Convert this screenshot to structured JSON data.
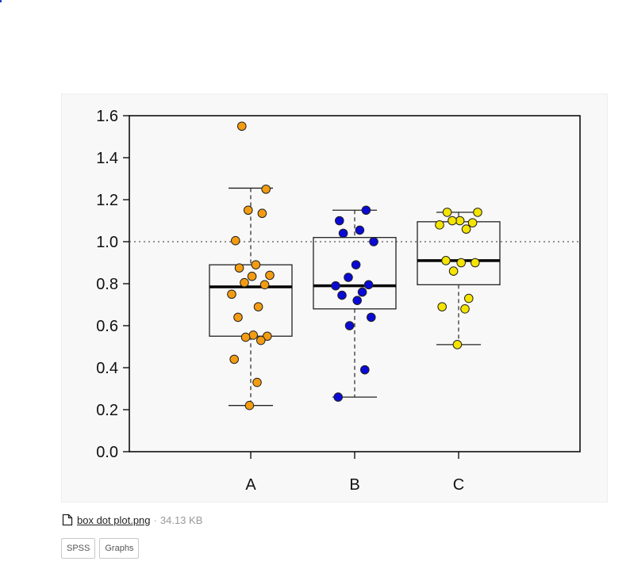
{
  "attachment": {
    "file_name": "box dot plot.png",
    "file_size": "34.13 KB",
    "icon": "file-icon"
  },
  "tags": [
    "SPSS",
    "Graphs"
  ],
  "chart_data": {
    "type": "box",
    "title": "",
    "xlabel": "",
    "ylabel": "",
    "ylim": [
      0,
      1.6
    ],
    "yticks": [
      "0.0",
      "0.2",
      "0.4",
      "0.6",
      "0.8",
      "1.0",
      "1.2",
      "1.4",
      "1.6"
    ],
    "reference_line": 1.0,
    "grid": false,
    "groups": [
      {
        "name": "A",
        "color": "#f39c12",
        "whisker_low": 0.22,
        "q1": 0.55,
        "median": 0.785,
        "q3": 0.89,
        "whisker_high": 1.255,
        "points": [
          1.55,
          1.25,
          1.15,
          1.135,
          1.005,
          0.89,
          0.875,
          0.84,
          0.835,
          0.805,
          0.795,
          0.75,
          0.69,
          0.64,
          0.555,
          0.55,
          0.545,
          0.53,
          0.44,
          0.33,
          0.22
        ]
      },
      {
        "name": "B",
        "color": "#0a0ad6",
        "whisker_low": 0.26,
        "q1": 0.68,
        "median": 0.79,
        "q3": 1.02,
        "whisker_high": 1.15,
        "points": [
          1.15,
          1.1,
          1.055,
          1.04,
          1.0,
          0.89,
          0.83,
          0.795,
          0.79,
          0.76,
          0.745,
          0.72,
          0.64,
          0.6,
          0.39,
          0.26
        ]
      },
      {
        "name": "C",
        "color": "#f5e400",
        "whisker_low": 0.51,
        "q1": 0.795,
        "median": 0.91,
        "q3": 1.095,
        "whisker_high": 1.14,
        "points": [
          1.14,
          1.14,
          1.1,
          1.1,
          1.09,
          1.08,
          1.06,
          0.91,
          0.9,
          0.9,
          0.86,
          0.73,
          0.69,
          0.68,
          0.51
        ]
      }
    ]
  }
}
